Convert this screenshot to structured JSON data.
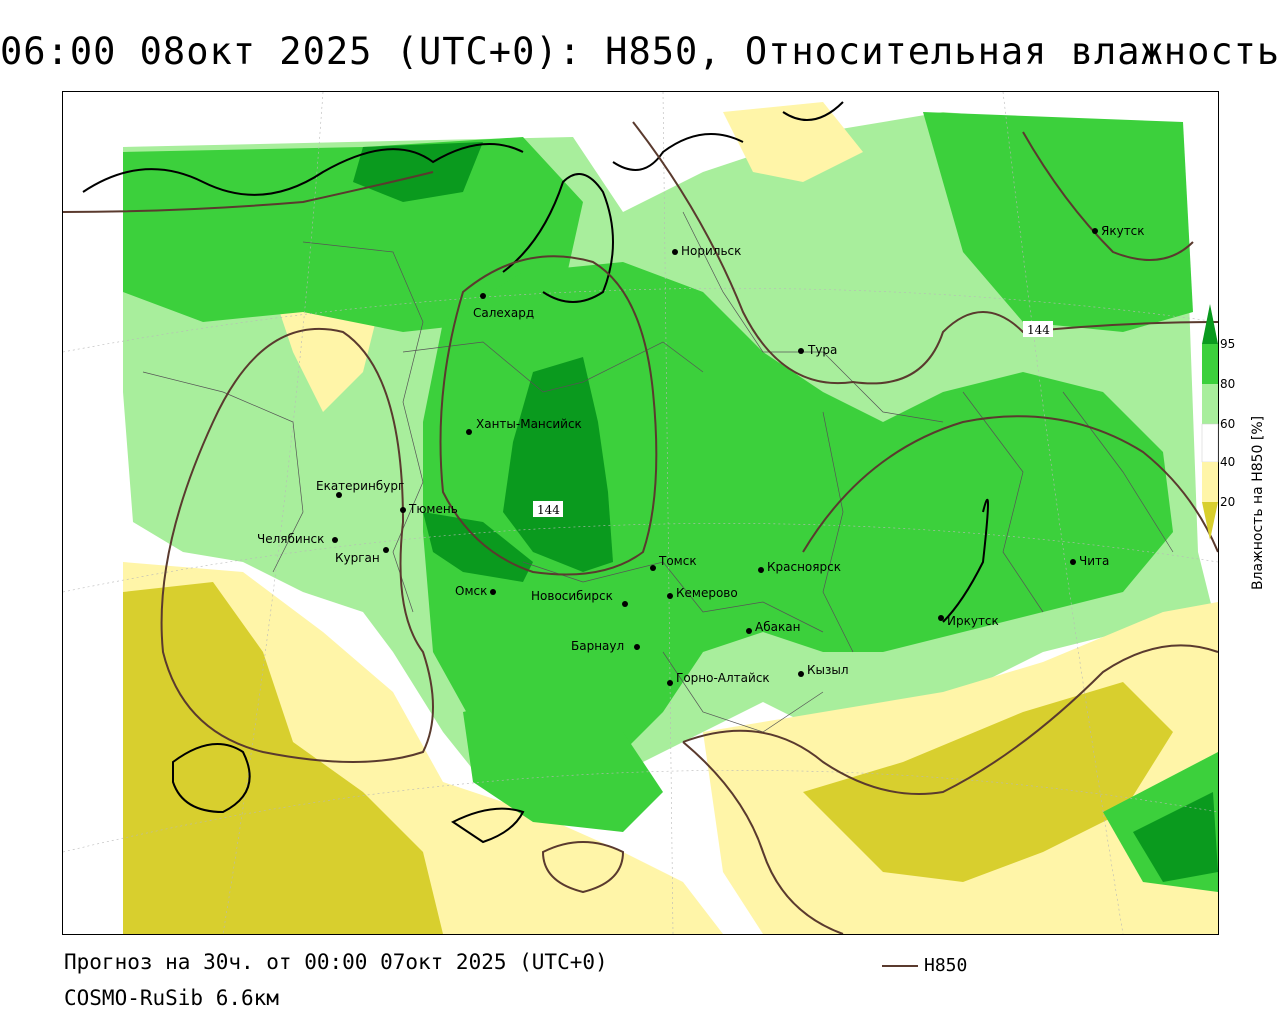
{
  "header": {
    "title": "06:00 08окт 2025 (UTC+0): H850, Относительная влажность"
  },
  "footer": {
    "forecast": "Прогноз на 30ч. от 00:00 07окт 2025 (UTC+0)",
    "model": "COSMO-RuSib 6.6км"
  },
  "legend": {
    "line_label": "H850",
    "line_color": "#5a3a2e",
    "colorbar_title": "Влажность на H850 [%]",
    "colorbar_ticks": [
      "95",
      "80",
      "60",
      "40",
      "20"
    ],
    "colors": {
      "dark_green": "#0a9a1e",
      "green": "#3cd03c",
      "light_green": "#a8ee9c",
      "white": "#ffffff",
      "light_yellow": "#fff5a8",
      "olive": "#d8cf2e"
    }
  },
  "map": {
    "cities": [
      {
        "name": "Якутск"
      },
      {
        "name": "Норильск"
      },
      {
        "name": "Салехард"
      },
      {
        "name": "Тура"
      },
      {
        "name": "Ханты-Мансийск"
      },
      {
        "name": "Екатеринбург"
      },
      {
        "name": "Тюмень"
      },
      {
        "name": "Челябинск"
      },
      {
        "name": "Курган"
      },
      {
        "name": "Омск"
      },
      {
        "name": "Новосибирск"
      },
      {
        "name": "Томск"
      },
      {
        "name": "Кемерово"
      },
      {
        "name": "Красноярск"
      },
      {
        "name": "Абакан"
      },
      {
        "name": "Барнаул"
      },
      {
        "name": "Горно-Алтайск"
      },
      {
        "name": "Кызыл"
      },
      {
        "name": "Иркутск"
      },
      {
        "name": "Чита"
      }
    ],
    "contour_labels": [
      "144",
      "144"
    ]
  }
}
